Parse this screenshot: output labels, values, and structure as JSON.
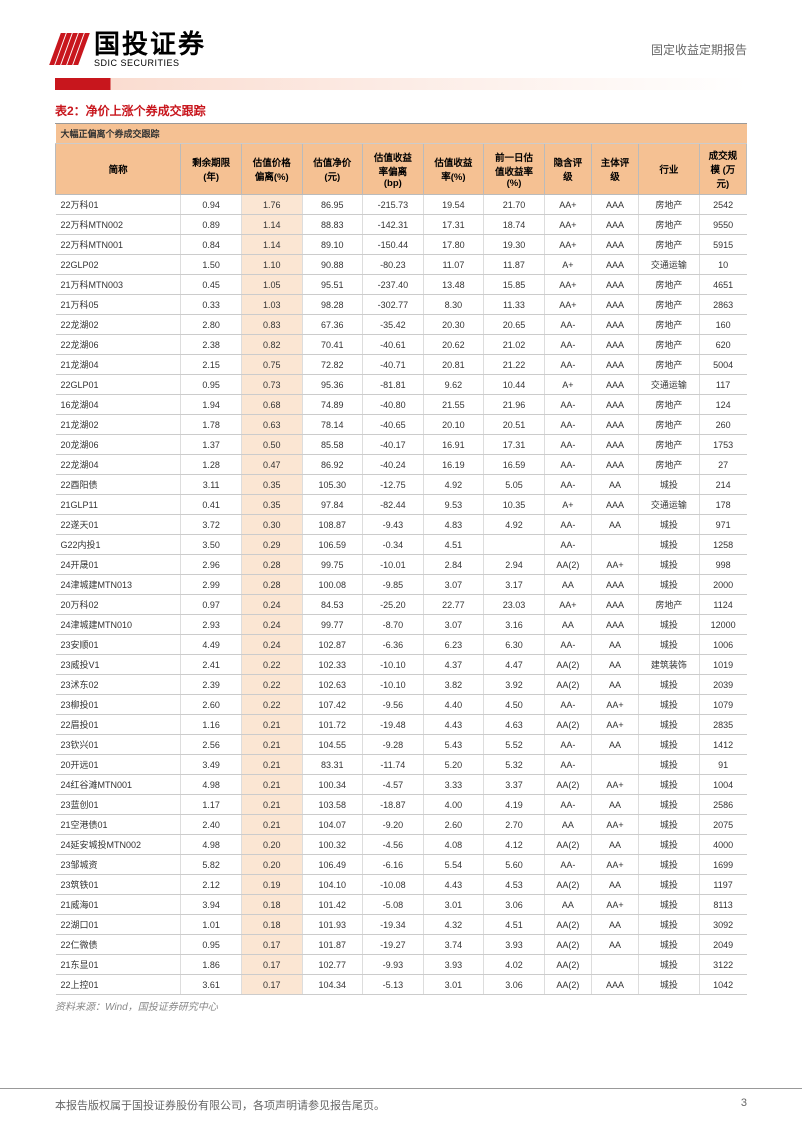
{
  "header": {
    "company_cn": "国投证券",
    "company_en": "SDIC SECURITIES",
    "report_type": "固定收益定期报告"
  },
  "table": {
    "title": "表2：净价上涨个券成交跟踪",
    "caption": "大幅正偏离个券成交跟踪",
    "columns": [
      "简称",
      "剩余期限\n(年)",
      "估值价格\n偏离(%)",
      "估值净价\n(元)",
      "估值收益\n率偏离\n(bp)",
      "估值收益\n率(%)",
      "前一日估\n值收益率\n(%)",
      "隐含评\n级",
      "主体评\n级",
      "行业",
      "成交规\n模 (万\n元)"
    ],
    "rows": [
      [
        "22万科01",
        "0.94",
        "1.76",
        "86.95",
        "-215.73",
        "19.54",
        "21.70",
        "AA+",
        "AAA",
        "房地产",
        "2542"
      ],
      [
        "22万科MTN002",
        "0.89",
        "1.14",
        "88.83",
        "-142.31",
        "17.31",
        "18.74",
        "AA+",
        "AAA",
        "房地产",
        "9550"
      ],
      [
        "22万科MTN001",
        "0.84",
        "1.14",
        "89.10",
        "-150.44",
        "17.80",
        "19.30",
        "AA+",
        "AAA",
        "房地产",
        "5915"
      ],
      [
        "22GLP02",
        "1.50",
        "1.10",
        "90.88",
        "-80.23",
        "11.07",
        "11.87",
        "A+",
        "AAA",
        "交通运输",
        "10"
      ],
      [
        "21万科MTN003",
        "0.45",
        "1.05",
        "95.51",
        "-237.40",
        "13.48",
        "15.85",
        "AA+",
        "AAA",
        "房地产",
        "4651"
      ],
      [
        "21万科05",
        "0.33",
        "1.03",
        "98.28",
        "-302.77",
        "8.30",
        "11.33",
        "AA+",
        "AAA",
        "房地产",
        "2863"
      ],
      [
        "22龙湖02",
        "2.80",
        "0.83",
        "67.36",
        "-35.42",
        "20.30",
        "20.65",
        "AA-",
        "AAA",
        "房地产",
        "160"
      ],
      [
        "22龙湖06",
        "2.38",
        "0.82",
        "70.41",
        "-40.61",
        "20.62",
        "21.02",
        "AA-",
        "AAA",
        "房地产",
        "620"
      ],
      [
        "21龙湖04",
        "2.15",
        "0.75",
        "72.82",
        "-40.71",
        "20.81",
        "21.22",
        "AA-",
        "AAA",
        "房地产",
        "5004"
      ],
      [
        "22GLP01",
        "0.95",
        "0.73",
        "95.36",
        "-81.81",
        "9.62",
        "10.44",
        "A+",
        "AAA",
        "交通运输",
        "117"
      ],
      [
        "16龙湖04",
        "1.94",
        "0.68",
        "74.89",
        "-40.80",
        "21.55",
        "21.96",
        "AA-",
        "AAA",
        "房地产",
        "124"
      ],
      [
        "21龙湖02",
        "1.78",
        "0.63",
        "78.14",
        "-40.65",
        "20.10",
        "20.51",
        "AA-",
        "AAA",
        "房地产",
        "260"
      ],
      [
        "20龙湖06",
        "1.37",
        "0.50",
        "85.58",
        "-40.17",
        "16.91",
        "17.31",
        "AA-",
        "AAA",
        "房地产",
        "1753"
      ],
      [
        "22龙湖04",
        "1.28",
        "0.47",
        "86.92",
        "-40.24",
        "16.19",
        "16.59",
        "AA-",
        "AAA",
        "房地产",
        "27"
      ],
      [
        "22酉阳债",
        "3.11",
        "0.35",
        "105.30",
        "-12.75",
        "4.92",
        "5.05",
        "AA-",
        "AA",
        "城投",
        "214"
      ],
      [
        "21GLP11",
        "0.41",
        "0.35",
        "97.84",
        "-82.44",
        "9.53",
        "10.35",
        "A+",
        "AAA",
        "交通运输",
        "178"
      ],
      [
        "22遂天01",
        "3.72",
        "0.30",
        "108.87",
        "-9.43",
        "4.83",
        "4.92",
        "AA-",
        "AA",
        "城投",
        "971"
      ],
      [
        "G22内投1",
        "3.50",
        "0.29",
        "106.59",
        "-0.34",
        "4.51",
        "",
        "AA-",
        "",
        "城投",
        "1258"
      ],
      [
        "24开晟01",
        "2.96",
        "0.28",
        "99.75",
        "-10.01",
        "2.84",
        "2.94",
        "AA(2)",
        "AA+",
        "城投",
        "998"
      ],
      [
        "24津城建MTN013",
        "2.99",
        "0.28",
        "100.08",
        "-9.85",
        "3.07",
        "3.17",
        "AA",
        "AAA",
        "城投",
        "2000"
      ],
      [
        "20万科02",
        "0.97",
        "0.24",
        "84.53",
        "-25.20",
        "22.77",
        "23.03",
        "AA+",
        "AAA",
        "房地产",
        "1124"
      ],
      [
        "24津城建MTN010",
        "2.93",
        "0.24",
        "99.77",
        "-8.70",
        "3.07",
        "3.16",
        "AA",
        "AAA",
        "城投",
        "12000"
      ],
      [
        "23安顺01",
        "4.49",
        "0.24",
        "102.87",
        "-6.36",
        "6.23",
        "6.30",
        "AA-",
        "AA",
        "城投",
        "1006"
      ],
      [
        "23威投V1",
        "2.41",
        "0.22",
        "102.33",
        "-10.10",
        "4.37",
        "4.47",
        "AA(2)",
        "AA",
        "建筑装饰",
        "1019"
      ],
      [
        "23沭东02",
        "2.39",
        "0.22",
        "102.63",
        "-10.10",
        "3.82",
        "3.92",
        "AA(2)",
        "AA",
        "城投",
        "2039"
      ],
      [
        "23柳投01",
        "2.60",
        "0.22",
        "107.42",
        "-9.56",
        "4.40",
        "4.50",
        "AA-",
        "AA+",
        "城投",
        "1079"
      ],
      [
        "22眉投01",
        "1.16",
        "0.21",
        "101.72",
        "-19.48",
        "4.43",
        "4.63",
        "AA(2)",
        "AA+",
        "城投",
        "2835"
      ],
      [
        "23钦兴01",
        "2.56",
        "0.21",
        "104.55",
        "-9.28",
        "5.43",
        "5.52",
        "AA-",
        "AA",
        "城投",
        "1412"
      ],
      [
        "20开远01",
        "3.49",
        "0.21",
        "83.31",
        "-11.74",
        "5.20",
        "5.32",
        "AA-",
        "",
        "城投",
        "91"
      ],
      [
        "24红谷滩MTN001",
        "4.98",
        "0.21",
        "100.34",
        "-4.57",
        "3.33",
        "3.37",
        "AA(2)",
        "AA+",
        "城投",
        "1004"
      ],
      [
        "23蓝创01",
        "1.17",
        "0.21",
        "103.58",
        "-18.87",
        "4.00",
        "4.19",
        "AA-",
        "AA",
        "城投",
        "2586"
      ],
      [
        "21空港债01",
        "2.40",
        "0.21",
        "104.07",
        "-9.20",
        "2.60",
        "2.70",
        "AA",
        "AA+",
        "城投",
        "2075"
      ],
      [
        "24延安城投MTN002",
        "4.98",
        "0.20",
        "100.32",
        "-4.56",
        "4.08",
        "4.12",
        "AA(2)",
        "AA",
        "城投",
        "4000"
      ],
      [
        "23邹城资",
        "5.82",
        "0.20",
        "106.49",
        "-6.16",
        "5.54",
        "5.60",
        "AA-",
        "AA+",
        "城投",
        "1699"
      ],
      [
        "23筑铁01",
        "2.12",
        "0.19",
        "104.10",
        "-10.08",
        "4.43",
        "4.53",
        "AA(2)",
        "AA",
        "城投",
        "1197"
      ],
      [
        "21威海01",
        "3.94",
        "0.18",
        "101.42",
        "-5.08",
        "3.01",
        "3.06",
        "AA",
        "AA+",
        "城投",
        "8113"
      ],
      [
        "22湖口01",
        "1.01",
        "0.18",
        "101.93",
        "-19.34",
        "4.32",
        "4.51",
        "AA(2)",
        "AA",
        "城投",
        "3092"
      ],
      [
        "22仁微债",
        "0.95",
        "0.17",
        "101.87",
        "-19.27",
        "3.74",
        "3.93",
        "AA(2)",
        "AA",
        "城投",
        "2049"
      ],
      [
        "21东显01",
        "1.86",
        "0.17",
        "102.77",
        "-9.93",
        "3.93",
        "4.02",
        "AA(2)",
        "",
        "城投",
        "3122"
      ],
      [
        "22上控01",
        "3.61",
        "0.17",
        "104.34",
        "-5.13",
        "3.01",
        "3.06",
        "AA(2)",
        "AAA",
        "城投",
        "1042"
      ]
    ],
    "source": "资料来源：Wind，国投证券研究中心"
  },
  "footer": {
    "copyright": "本报告版权属于国投证券股份有限公司，各项声明请参见报告尾页。",
    "page": "3"
  },
  "colors": {
    "brand_red": "#c8161d",
    "header_bg": "#f5c193",
    "highlight_bg": "#fbe6d3"
  }
}
